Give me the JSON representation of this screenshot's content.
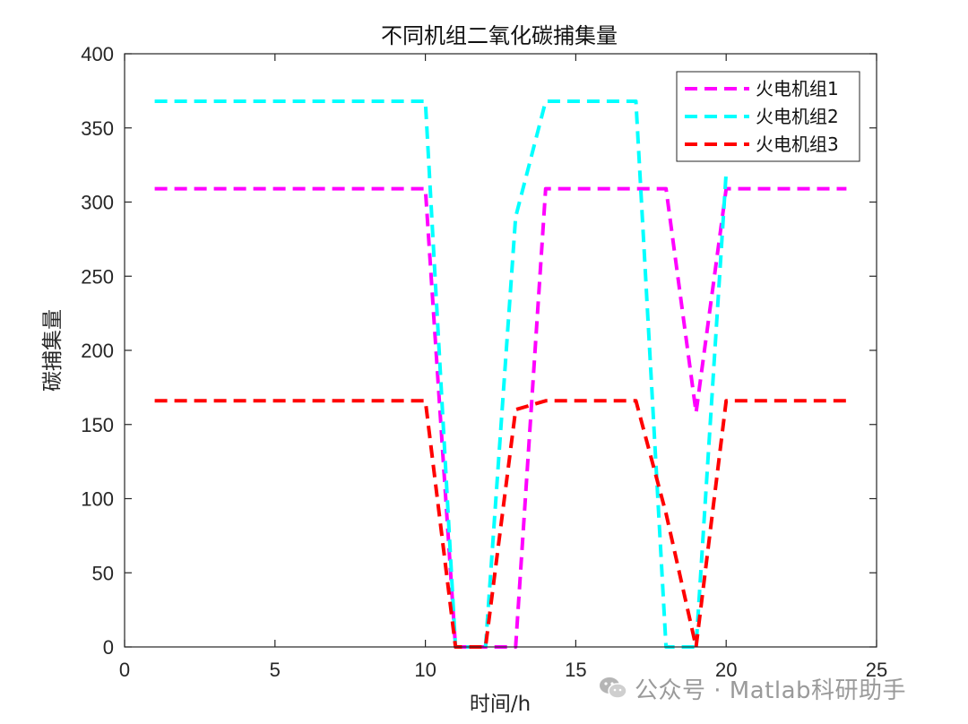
{
  "chart_data": {
    "type": "line",
    "title": "不同机组二氧化碳捕集量",
    "xlabel": "时间/h",
    "ylabel": "碳捕集量",
    "xlim": [
      0,
      25
    ],
    "ylim": [
      0,
      400
    ],
    "xticks": [
      0,
      5,
      10,
      15,
      20,
      25
    ],
    "yticks": [
      0,
      50,
      100,
      150,
      200,
      250,
      300,
      350,
      400
    ],
    "grid": false,
    "legend_position": "top-right",
    "series": [
      {
        "name": "火电机组1",
        "color": "#ff00ff",
        "line_style": "dashed",
        "points": [
          [
            1,
            309
          ],
          [
            2,
            309
          ],
          [
            3,
            309
          ],
          [
            4,
            309
          ],
          [
            5,
            309
          ],
          [
            6,
            309
          ],
          [
            7,
            309
          ],
          [
            8,
            309
          ],
          [
            9,
            309
          ],
          [
            10,
            309
          ],
          [
            11,
            0
          ],
          [
            12,
            0
          ],
          [
            13,
            0
          ],
          [
            14,
            309
          ],
          [
            15,
            309
          ],
          [
            16,
            309
          ],
          [
            17,
            309
          ],
          [
            18,
            309
          ],
          [
            19,
            158
          ],
          [
            20,
            309
          ],
          [
            21,
            309
          ],
          [
            22,
            309
          ],
          [
            23,
            309
          ],
          [
            24,
            309
          ]
        ]
      },
      {
        "name": "火电机组2",
        "color": "#00ffff",
        "line_style": "dashed",
        "points": [
          [
            1,
            368
          ],
          [
            2,
            368
          ],
          [
            3,
            368
          ],
          [
            4,
            368
          ],
          [
            5,
            368
          ],
          [
            6,
            368
          ],
          [
            7,
            368
          ],
          [
            8,
            368
          ],
          [
            9,
            368
          ],
          [
            10,
            368
          ],
          [
            11,
            0
          ],
          [
            12,
            0
          ],
          [
            13,
            290
          ],
          [
            14,
            368
          ],
          [
            15,
            368
          ],
          [
            16,
            368
          ],
          [
            17,
            368
          ],
          [
            18,
            0
          ],
          [
            19,
            0
          ],
          [
            20,
            320
          ]
        ]
      },
      {
        "name": "火电机组3",
        "color": "#ff0000",
        "line_style": "dashed",
        "points": [
          [
            1,
            166
          ],
          [
            2,
            166
          ],
          [
            3,
            166
          ],
          [
            4,
            166
          ],
          [
            5,
            166
          ],
          [
            6,
            166
          ],
          [
            7,
            166
          ],
          [
            8,
            166
          ],
          [
            9,
            166
          ],
          [
            10,
            166
          ],
          [
            11,
            0
          ],
          [
            12,
            0
          ],
          [
            13,
            160
          ],
          [
            14,
            166
          ],
          [
            15,
            166
          ],
          [
            16,
            166
          ],
          [
            17,
            166
          ],
          [
            18,
            90
          ],
          [
            19,
            0
          ],
          [
            20,
            166
          ],
          [
            21,
            166
          ],
          [
            22,
            166
          ],
          [
            23,
            166
          ],
          [
            24,
            166
          ]
        ]
      }
    ]
  },
  "watermark": {
    "text": "公众号 · Matlab科研助手",
    "icon": "wechat-icon"
  }
}
